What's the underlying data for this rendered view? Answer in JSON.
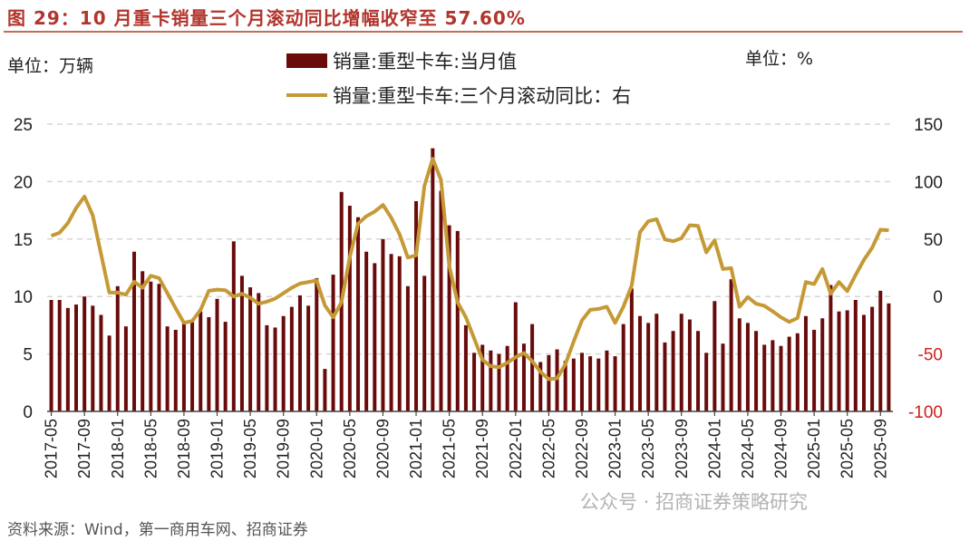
{
  "title": "图 29：10 月重卡销量三个月滚动同比增幅收窄至 57.60%",
  "left_unit": "单位：万辆",
  "right_unit": "单位：%",
  "source": "资料来源：Wind，第一商用车网、招商证券",
  "watermark": "公众号 · 招商证券策略研究",
  "colors": {
    "bar": "#6a0b0b",
    "line": "#c59a36",
    "negative_tick": "#d0201a",
    "title": "#b2352d"
  },
  "chart_data": {
    "type": "bar+line",
    "start_month": "2017-05",
    "xtick_labels": [
      "2017-05",
      "2017-09",
      "2018-01",
      "2018-05",
      "2018-09",
      "2019-01",
      "2019-05",
      "2019-09",
      "2020-01",
      "2020-05",
      "2020-09",
      "2021-01",
      "2021-05",
      "2021-09",
      "2022-01",
      "2022-05",
      "2022-09",
      "2023-01",
      "2023-05",
      "2023-09",
      "2024-01",
      "2024-05",
      "2024-09",
      "2025-01",
      "2025-05",
      "2025-09"
    ],
    "left_axis": {
      "ylim": [
        0,
        25
      ],
      "ticks": [
        "0",
        "5",
        "10",
        "15",
        "20",
        "25"
      ]
    },
    "right_axis": {
      "ylim": [
        -100,
        150
      ],
      "ticks": [
        "-100",
        "-50",
        "0",
        "50",
        "100",
        "150"
      ]
    },
    "grid": "horizontal dashed",
    "legend": "top-center",
    "series": [
      {
        "name": "销量:重型卡车:当月值",
        "axis": "left",
        "type": "bar",
        "values": [
          9.7,
          9.7,
          9.0,
          9.3,
          10.0,
          9.2,
          8.4,
          6.6,
          10.9,
          7.4,
          13.9,
          12.2,
          11.3,
          11.1,
          7.4,
          7.1,
          7.7,
          7.8,
          8.7,
          8.2,
          9.8,
          7.8,
          14.8,
          11.8,
          10.8,
          10.3,
          7.5,
          7.3,
          8.3,
          9.1,
          10.1,
          9.2,
          11.6,
          3.7,
          11.9,
          19.1,
          17.9,
          16.9,
          13.9,
          12.9,
          15.0,
          13.7,
          13.5,
          10.9,
          18.3,
          11.8,
          22.9,
          19.2,
          16.2,
          15.7,
          7.5,
          5.1,
          5.8,
          5.3,
          5.0,
          5.7,
          9.5,
          5.9,
          7.6,
          4.3,
          4.9,
          5.4,
          4.4,
          4.6,
          5.1,
          4.8,
          4.6,
          5.3,
          4.8,
          7.6,
          10.7,
          8.3,
          7.7,
          8.5,
          6.0,
          7.0,
          8.5,
          8.0,
          7.0,
          5.1,
          9.6,
          5.9,
          11.5,
          8.1,
          7.7,
          7.0,
          5.8,
          6.2,
          5.7,
          6.5,
          6.8,
          8.3,
          7.1,
          8.1,
          11.0,
          8.7,
          8.8,
          9.7,
          8.4,
          9.1,
          10.5,
          9.4
        ]
      },
      {
        "name": "销量:重型卡车:三个月滚动同比：右",
        "axis": "right",
        "type": "line",
        "values": [
          52.8,
          55.5,
          63.9,
          77,
          87,
          70.7,
          37,
          3.4,
          3.4,
          1.6,
          12.9,
          7.6,
          18.1,
          16,
          2.9,
          -10.3,
          -22.9,
          -21.3,
          -11.6,
          5,
          6,
          5.5,
          0,
          2.4,
          -1,
          -6.3,
          -4.5,
          -1.8,
          2.9,
          7.6,
          11.3,
          12.6,
          14,
          -7.8,
          -18.1,
          -5,
          34.4,
          63.4,
          69.9,
          73.9,
          79.7,
          68.6,
          54.2,
          33.9,
          35.8,
          96.2,
          119.9,
          101.5,
          26.5,
          -5,
          -18.1,
          -36.5,
          -55,
          -60.7,
          -61.5,
          -57.6,
          -52.8,
          -49.2,
          -56.3,
          -65.5,
          -72,
          -71.2,
          -58.9,
          -39.2,
          -20.8,
          -11.6,
          -10.8,
          -8.9,
          -22.9,
          -8.9,
          9.5,
          56,
          65.5,
          67.3,
          49.7,
          48.1,
          50.7,
          62,
          61.5,
          38.4,
          48.9,
          23.9,
          24.7,
          -8.9,
          -0.5,
          -6.3,
          -8.1,
          -12.9,
          -18.1,
          -22.1,
          -18.7,
          12.6,
          10.8,
          23.9,
          2.4,
          12.6,
          4.7,
          18.7,
          31.8,
          42.4,
          58.1,
          57.6
        ]
      }
    ]
  }
}
